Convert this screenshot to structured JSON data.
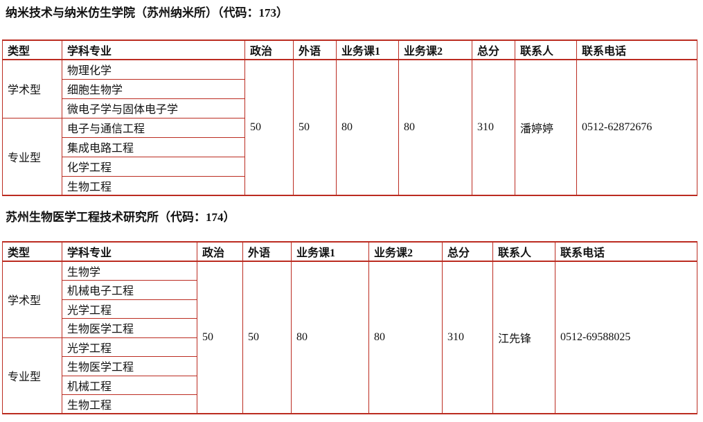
{
  "colors": {
    "table_border": "#bb2b20",
    "text": "#111111",
    "background": "#ffffff"
  },
  "sections": [
    {
      "title": "纳米技术与纳米仿生学院（苏州纳米所）（代码：173）",
      "code": "173",
      "headers": [
        "类型",
        "学科专业",
        "政治",
        "外语",
        "业务课1",
        "业务课2",
        "总分",
        "联系人",
        "联系电话"
      ],
      "groups": [
        {
          "type": "学术型",
          "majors": [
            "物理化学",
            "细胞生物学",
            "微电子学与固体电子学"
          ]
        },
        {
          "type": "专业型",
          "majors": [
            "电子与通信工程",
            "集成电路工程",
            "化学工程",
            "生物工程"
          ]
        }
      ],
      "scores": {
        "politics": "50",
        "foreign_language": "50",
        "course1": "80",
        "course2": "80",
        "total": "310",
        "contact": "潘婷婷",
        "phone": "0512-62872676"
      }
    },
    {
      "title": "苏州生物医学工程技术研究所（代码：174）",
      "code": "174",
      "headers": [
        "类型",
        "学科专业",
        "政治",
        "外语",
        "业务课1",
        "业务课2",
        "总分",
        "联系人",
        "联系电话"
      ],
      "groups": [
        {
          "type": "学术型",
          "majors": [
            "生物学",
            "机械电子工程",
            "光学工程",
            "生物医学工程"
          ]
        },
        {
          "type": "专业型",
          "majors": [
            "光学工程",
            "生物医学工程",
            "机械工程",
            "生物工程"
          ]
        }
      ],
      "scores": {
        "politics": "50",
        "foreign_language": "50",
        "course1": "80",
        "course2": "80",
        "total": "310",
        "contact": "江先锋",
        "phone": "0512-69588025"
      }
    }
  ]
}
